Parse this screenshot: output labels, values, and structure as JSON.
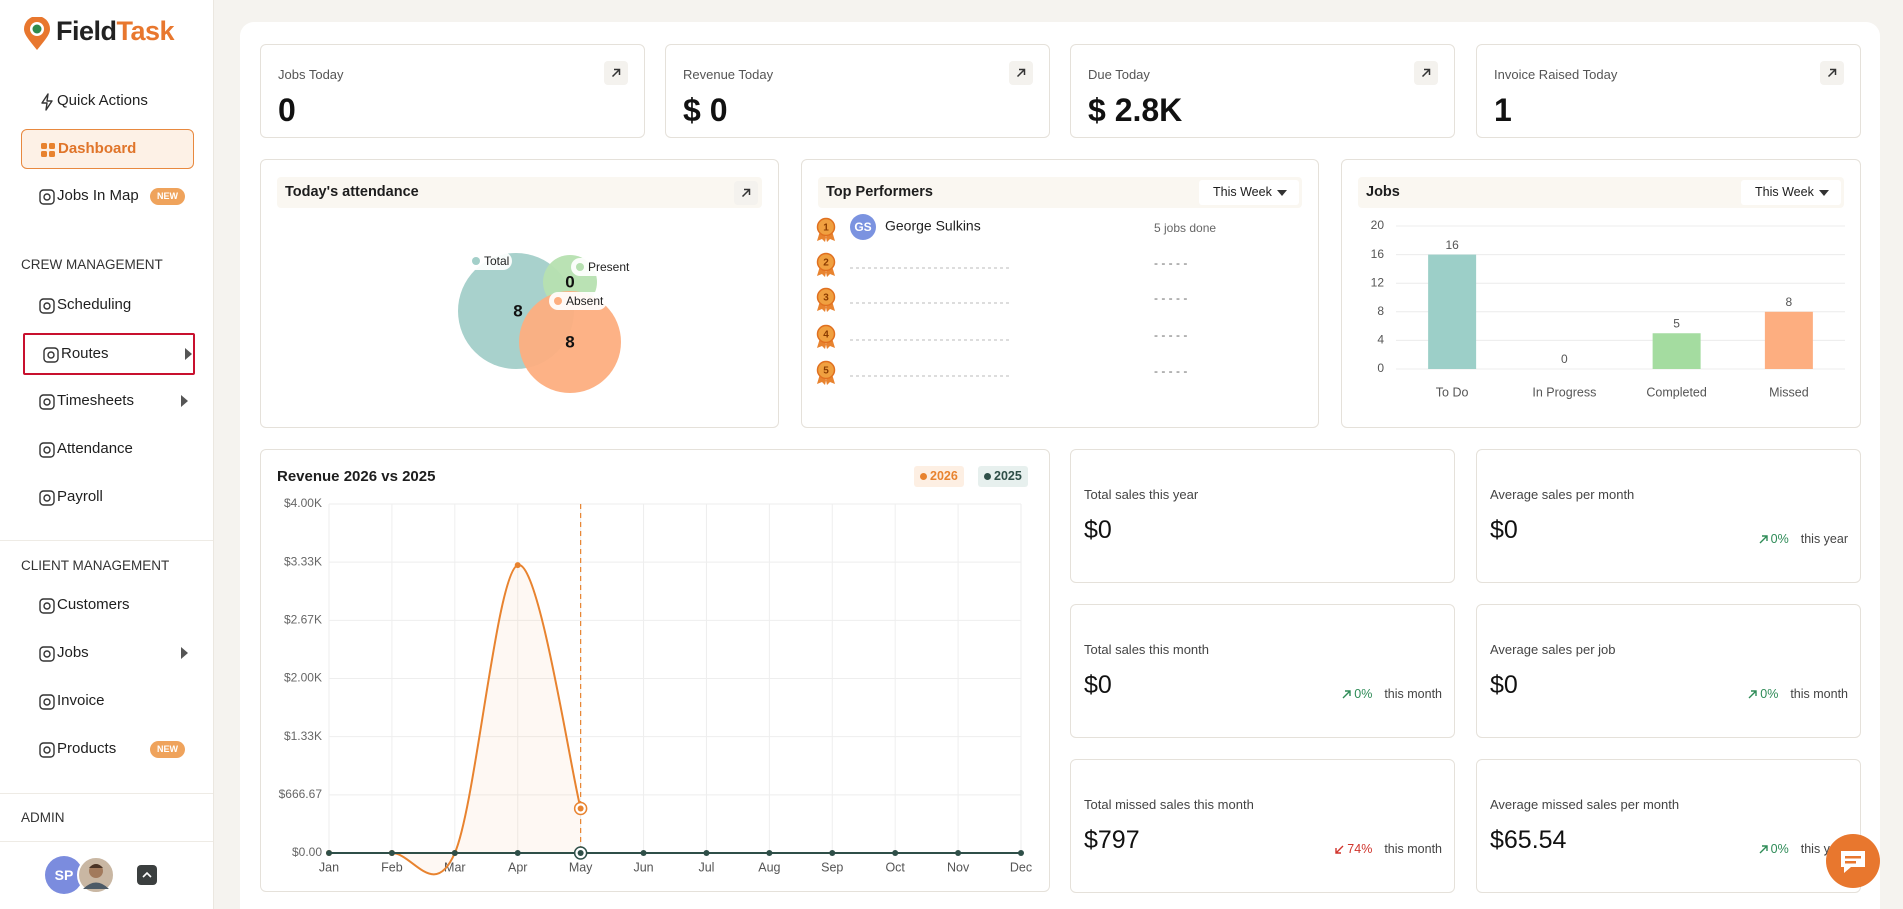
{
  "brand": {
    "first": "Field",
    "second": "Task"
  },
  "nav": {
    "top": [
      {
        "label": "Quick Actions"
      },
      {
        "label": "Dashboard",
        "active": true
      },
      {
        "label": "Jobs In Map",
        "badge": "NEW"
      }
    ],
    "sections": [
      {
        "title": "CREW MANAGEMENT",
        "items": [
          {
            "label": "Scheduling"
          },
          {
            "label": "Routes",
            "submenu": true,
            "highlighted": true
          },
          {
            "label": "Timesheets",
            "submenu": true
          },
          {
            "label": "Attendance"
          },
          {
            "label": "Payroll"
          }
        ]
      },
      {
        "title": "CLIENT MANAGEMENT",
        "items": [
          {
            "label": "Customers"
          },
          {
            "label": "Jobs",
            "submenu": true
          },
          {
            "label": "Invoice"
          },
          {
            "label": "Products",
            "badge": "NEW"
          }
        ]
      },
      {
        "title": "ADMIN"
      }
    ]
  },
  "user": {
    "initials": "SP"
  },
  "stats": [
    {
      "label": "Jobs Today",
      "value": "0"
    },
    {
      "label": "Revenue Today",
      "value": "$ 0"
    },
    {
      "label": "Due Today",
      "value": "$ 2.8K"
    },
    {
      "label": "Invoice Raised Today",
      "value": "1"
    }
  ],
  "attendance": {
    "title": "Today's attendance",
    "items": [
      {
        "name": "Total",
        "value": 8,
        "color": "#a3cfc9"
      },
      {
        "name": "Present",
        "value": 0,
        "color": "#b6e0b0"
      },
      {
        "name": "Absent",
        "value": 8,
        "color": "#fdae7f"
      }
    ]
  },
  "top_performers": {
    "title": "Top Performers",
    "filter": "This Week",
    "rows": [
      {
        "rank": "1",
        "initials": "GS",
        "name": "George Sulkins",
        "jobs": "5 jobs done"
      },
      {
        "rank": "2",
        "jobs": "- - - - -"
      },
      {
        "rank": "3",
        "jobs": "- - - - -"
      },
      {
        "rank": "4",
        "jobs": "- - - - -"
      },
      {
        "rank": "5",
        "jobs": "- - - - -"
      }
    ]
  },
  "jobs_chart": {
    "type": "bar",
    "title": "Jobs",
    "filter": "This Week",
    "categories": [
      "To Do",
      "In Progress",
      "Completed",
      "Missed"
    ],
    "values": [
      16,
      0,
      5,
      8
    ],
    "colors": [
      "#9ccfc8",
      "#f3d37a",
      "#a4dca0",
      "#fdae80"
    ],
    "ylim": [
      0,
      20
    ],
    "yticks": [
      0,
      4,
      8,
      12,
      16,
      20
    ],
    "grid": true
  },
  "revenue_chart": {
    "type": "line",
    "title": "Revenue 2026 vs 2025",
    "categories": [
      "Jan",
      "Feb",
      "Mar",
      "Apr",
      "May",
      "Jun",
      "Jul",
      "Aug",
      "Sep",
      "Oct",
      "Nov",
      "Dec"
    ],
    "series": [
      {
        "name": "2026",
        "color": "#e8832f",
        "values": [
          0,
          0,
          0,
          3300,
          510,
          null,
          null,
          null,
          null,
          null,
          null,
          null
        ]
      },
      {
        "name": "2025",
        "color": "#2f4f48",
        "values": [
          0,
          0,
          0,
          0,
          0,
          0,
          0,
          0,
          0,
          0,
          0,
          0
        ]
      }
    ],
    "ylim": [
      0,
      4000
    ],
    "yticks": [
      {
        "value": 0,
        "label": "$0.00"
      },
      {
        "value": 666.67,
        "label": "$666.67"
      },
      {
        "value": 1333.33,
        "label": "$1.33K"
      },
      {
        "value": 2000,
        "label": "$2.00K"
      },
      {
        "value": 2666.67,
        "label": "$2.67K"
      },
      {
        "value": 3333.33,
        "label": "$3.33K"
      },
      {
        "value": 4000,
        "label": "$4.00K"
      }
    ],
    "grid": true
  },
  "sales_cards": [
    {
      "label": "Total sales this year",
      "value": "$0"
    },
    {
      "label": "Average sales per month",
      "value": "$0",
      "change": "0%",
      "trend": "up",
      "period": "this year"
    },
    {
      "label": "Total sales this month",
      "value": "$0",
      "change": "0%",
      "trend": "up",
      "period": "this month"
    },
    {
      "label": "Average sales per job",
      "value": "$0",
      "change": "0%",
      "trend": "up",
      "period": "this month"
    },
    {
      "label": "Total missed sales this month",
      "value": "$797",
      "change": "74%",
      "trend": "down",
      "period": "this month"
    },
    {
      "label": "Average missed sales per month",
      "value": "$65.54",
      "change": "0%",
      "trend": "up",
      "period": "this year"
    }
  ]
}
